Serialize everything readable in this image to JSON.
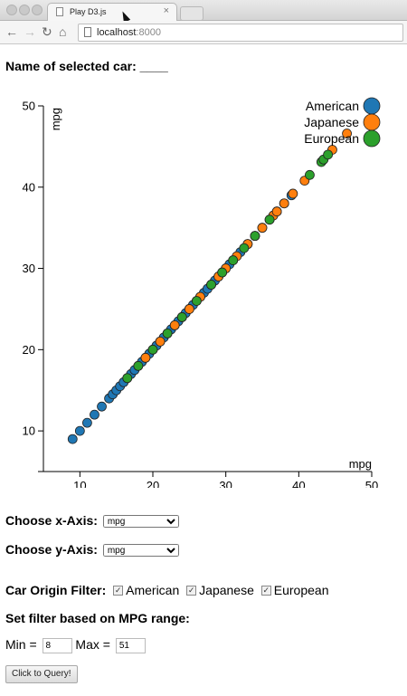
{
  "browser": {
    "tab_title": "Play D3.js",
    "tab_close": "×",
    "url_host": "localhost",
    "url_port": ":8000",
    "back": "←",
    "forward": "→",
    "reload": "↻",
    "home": "⌂"
  },
  "page": {
    "heading": "Name of selected car: ____",
    "x_axis_label": "Choose x-Axis:",
    "x_axis_value": "mpg",
    "y_axis_label": "Choose y-Axis:",
    "y_axis_value": "mpg",
    "origin_filter_label": "Car Origin Filter:",
    "origins": [
      "American",
      "Japanese",
      "European"
    ],
    "mpg_range_label": "Set filter based on MPG range:",
    "min_label": "Min =",
    "min_value": "8",
    "max_label": "Max =",
    "max_value": "51",
    "query_button": "Click to Query!"
  },
  "colors": {
    "American": "#1f77b4",
    "Japanese": "#ff7f0e",
    "European": "#2ca02c"
  },
  "chart_data": {
    "type": "scatter",
    "xlabel": "mpg",
    "ylabel": "mpg",
    "xlim": [
      5,
      50
    ],
    "ylim": [
      5,
      50
    ],
    "xticks": [
      10,
      20,
      30,
      40,
      50
    ],
    "yticks": [
      10,
      20,
      30,
      40,
      50
    ],
    "legend_position": "top-right",
    "series": [
      {
        "name": "American",
        "values": [
          9,
          10,
          11,
          12,
          13,
          14,
          14.5,
          15,
          15.5,
          16,
          16.5,
          17,
          17.5,
          18,
          18.5,
          19,
          19.5,
          20,
          20.5,
          21,
          21.5,
          22,
          22.5,
          23,
          23.5,
          24,
          24.5,
          25,
          25.5,
          26,
          26.5,
          27,
          27.5,
          28,
          28.5,
          29,
          29.5,
          30,
          30.5,
          31,
          32,
          33,
          34,
          35,
          36,
          37,
          38,
          39
        ]
      },
      {
        "name": "Japanese",
        "values": [
          19,
          21,
          23,
          24,
          25,
          26.5,
          28,
          29,
          30,
          31.5,
          33,
          34,
          35,
          36.5,
          37,
          38,
          39.2,
          40.8,
          44.6,
          46.6
        ]
      },
      {
        "name": "European",
        "values": [
          16.5,
          18,
          20,
          22,
          24,
          26,
          28,
          29.5,
          31,
          32.5,
          34,
          36,
          41.5,
          43.1,
          43.4,
          44
        ]
      }
    ]
  }
}
